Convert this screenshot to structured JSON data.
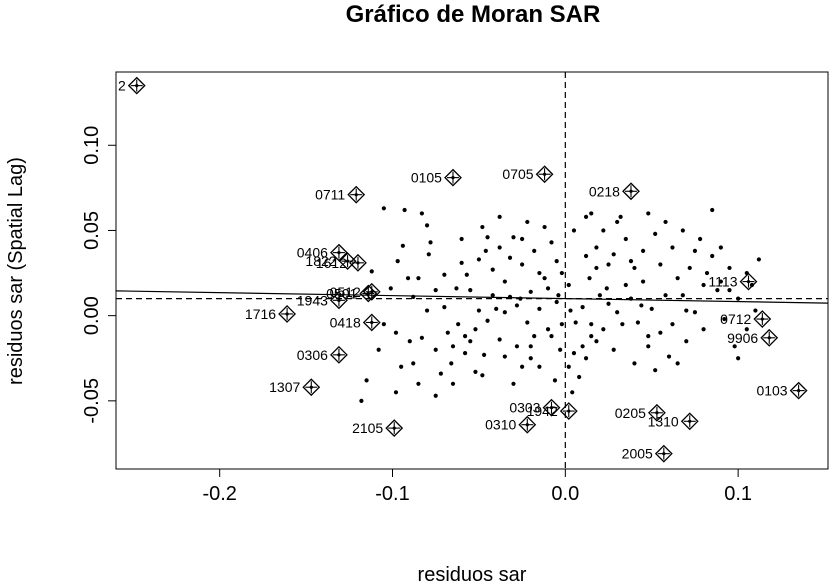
{
  "chart_data": {
    "type": "scatter",
    "title": "Gráfico de Moran SAR",
    "xlabel": "residuos sar",
    "ylabel": "residuos sar (Spatial Lag)",
    "xlim": [
      -0.26,
      0.152
    ],
    "ylim": [
      -0.09,
      0.143
    ],
    "x_ticks": [
      {
        "value": -0.2,
        "label": "-0.2"
      },
      {
        "value": -0.1,
        "label": "-0.1"
      },
      {
        "value": 0.0,
        "label": "0.0"
      },
      {
        "value": 0.1,
        "label": "0.1"
      }
    ],
    "y_ticks": [
      {
        "value": -0.05,
        "label": "-0.05"
      },
      {
        "value": 0.0,
        "label": "0.00"
      },
      {
        "value": 0.05,
        "label": "0.05"
      },
      {
        "value": 0.1,
        "label": "0.10"
      }
    ],
    "grid": false,
    "mean_lines": {
      "x": 0.0,
      "y": 0.01
    },
    "regression_line": {
      "intercept": 0.01,
      "slope": -0.0175
    },
    "influential_points": [
      {
        "label": "2",
        "x": -0.248,
        "y": 0.135
      },
      {
        "label": "0105",
        "x": -0.065,
        "y": 0.081
      },
      {
        "label": "0705",
        "x": -0.012,
        "y": 0.083
      },
      {
        "label": "0218",
        "x": 0.038,
        "y": 0.073
      },
      {
        "label": "0711",
        "x": -0.121,
        "y": 0.071
      },
      {
        "label": "0406",
        "x": -0.131,
        "y": 0.037
      },
      {
        "label": "1822",
        "x": -0.126,
        "y": 0.032
      },
      {
        "label": "1612",
        "x": -0.12,
        "y": 0.031
      },
      {
        "label": "1113",
        "x": 0.106,
        "y": 0.02
      },
      {
        "label": "0501",
        "x": -0.114,
        "y": 0.013
      },
      {
        "label": "0512",
        "x": -0.112,
        "y": 0.014
      },
      {
        "label": "1943",
        "x": -0.131,
        "y": 0.009
      },
      {
        "label": "1716",
        "x": -0.161,
        "y": 0.001
      },
      {
        "label": "0418",
        "x": -0.112,
        "y": -0.004
      },
      {
        "label": "0712",
        "x": 0.114,
        "y": -0.002
      },
      {
        "label": "9906",
        "x": 0.118,
        "y": -0.013
      },
      {
        "label": "0306",
        "x": -0.131,
        "y": -0.023
      },
      {
        "label": "1307",
        "x": -0.147,
        "y": -0.042
      },
      {
        "label": "0103",
        "x": 0.135,
        "y": -0.044
      },
      {
        "label": "0303",
        "x": -0.008,
        "y": -0.054
      },
      {
        "label": "1942",
        "x": 0.002,
        "y": -0.056
      },
      {
        "label": "0205",
        "x": 0.053,
        "y": -0.057
      },
      {
        "label": "0310",
        "x": -0.022,
        "y": -0.064
      },
      {
        "label": "1310",
        "x": 0.072,
        "y": -0.062
      },
      {
        "label": "2105",
        "x": -0.099,
        "y": -0.066
      },
      {
        "label": "2005",
        "x": 0.057,
        "y": -0.081
      }
    ],
    "points": [
      [
        -0.105,
        0.063
      ],
      [
        -0.093,
        0.062
      ],
      [
        -0.083,
        0.06
      ],
      [
        -0.08,
        0.053
      ],
      [
        -0.078,
        0.043
      ],
      [
        -0.079,
        0.036
      ],
      [
        -0.094,
        0.041
      ],
      [
        -0.097,
        0.032
      ],
      [
        -0.091,
        0.022
      ],
      [
        -0.101,
        0.016
      ],
      [
        -0.088,
        0.011
      ],
      [
        -0.075,
        0.015
      ],
      [
        -0.063,
        0.016
      ],
      [
        -0.07,
        0.005
      ],
      [
        -0.055,
        0.015
      ],
      [
        -0.057,
        0.024
      ],
      [
        -0.06,
        0.031
      ],
      [
        -0.05,
        0.033
      ],
      [
        -0.042,
        0.027
      ],
      [
        -0.045,
        0.046
      ],
      [
        -0.048,
        0.052
      ],
      [
        -0.038,
        0.04
      ],
      [
        -0.035,
        0.02
      ],
      [
        -0.032,
        0.011
      ],
      [
        -0.04,
        0.004
      ],
      [
        -0.045,
        -0.003
      ],
      [
        -0.052,
        -0.008
      ],
      [
        -0.058,
        -0.012
      ],
      [
        -0.065,
        -0.018
      ],
      [
        -0.075,
        -0.02
      ],
      [
        -0.083,
        -0.013
      ],
      [
        -0.09,
        -0.015
      ],
      [
        -0.095,
        -0.03
      ],
      [
        -0.098,
        -0.045
      ],
      [
        -0.085,
        -0.04
      ],
      [
        -0.075,
        -0.047
      ],
      [
        -0.065,
        -0.04
      ],
      [
        -0.052,
        -0.033
      ],
      [
        -0.047,
        -0.023
      ],
      [
        -0.038,
        -0.014
      ],
      [
        -0.035,
        -0.024
      ],
      [
        -0.028,
        -0.018
      ],
      [
        -0.025,
        -0.03
      ],
      [
        -0.03,
        -0.04
      ],
      [
        -0.02,
        -0.025
      ],
      [
        -0.018,
        -0.012
      ],
      [
        -0.022,
        -0.004
      ],
      [
        -0.015,
        0.004
      ],
      [
        -0.02,
        0.014
      ],
      [
        -0.012,
        0.022
      ],
      [
        -0.025,
        0.03
      ],
      [
        -0.018,
        0.038
      ],
      [
        -0.03,
        0.046
      ],
      [
        -0.022,
        0.055
      ],
      [
        -0.012,
        0.052
      ],
      [
        -0.008,
        0.043
      ],
      [
        -0.005,
        0.032
      ],
      [
        -0.002,
        0.025
      ],
      [
        0.002,
        0.018
      ],
      [
        -0.005,
        0.008
      ],
      [
        0.003,
        0.003
      ],
      [
        -0.002,
        -0.005
      ],
      [
        -0.008,
        -0.012
      ],
      [
        -0.003,
        -0.02
      ],
      [
        0.002,
        -0.03
      ],
      [
        -0.006,
        -0.038
      ],
      [
        0.004,
        -0.045
      ],
      [
        0.008,
        -0.036
      ],
      [
        0.012,
        -0.025
      ],
      [
        0.018,
        -0.015
      ],
      [
        0.015,
        -0.005
      ],
      [
        0.01,
        0.005
      ],
      [
        0.02,
        0.012
      ],
      [
        0.014,
        0.022
      ],
      [
        0.025,
        0.03
      ],
      [
        0.018,
        0.04
      ],
      [
        0.022,
        0.05
      ],
      [
        0.012,
        0.058
      ],
      [
        0.03,
        0.055
      ],
      [
        0.035,
        0.045
      ],
      [
        0.028,
        0.036
      ],
      [
        0.04,
        0.028
      ],
      [
        0.045,
        0.02
      ],
      [
        0.038,
        0.01
      ],
      [
        0.05,
        0.004
      ],
      [
        0.042,
        -0.004
      ],
      [
        0.055,
        -0.01
      ],
      [
        0.048,
        -0.018
      ],
      [
        0.06,
        -0.024
      ],
      [
        0.052,
        -0.032
      ],
      [
        0.065,
        -0.028
      ],
      [
        0.07,
        -0.015
      ],
      [
        0.062,
        -0.005
      ],
      [
        0.075,
        0.002
      ],
      [
        0.068,
        0.012
      ],
      [
        0.08,
        0.018
      ],
      [
        0.072,
        0.028
      ],
      [
        0.085,
        0.035
      ],
      [
        0.078,
        0.045
      ],
      [
        0.09,
        0.04
      ],
      [
        0.095,
        0.028
      ],
      [
        0.088,
        0.015
      ],
      [
        0.1,
        0.01
      ],
      [
        0.092,
        -0.002
      ],
      [
        0.105,
        -0.008
      ],
      [
        0.098,
        -0.018
      ],
      [
        0.11,
        0.003
      ],
      [
        0.112,
        0.033
      ],
      [
        0.085,
        0.062
      ],
      [
        0.058,
        0.055
      ],
      [
        0.048,
        0.06
      ],
      [
        0.032,
        0.058
      ],
      [
        0.068,
        0.05
      ],
      [
        0.075,
        0.038
      ],
      [
        0.105,
        0.025
      ],
      [
        0.015,
        0.06
      ],
      [
        0.005,
        0.05
      ],
      [
        -0.05,
        0.003
      ],
      [
        -0.062,
        -0.005
      ],
      [
        -0.068,
        -0.01
      ],
      [
        -0.08,
        0.003
      ],
      [
        -0.085,
        0.022
      ],
      [
        -0.098,
        -0.01
      ],
      [
        -0.06,
        0.045
      ],
      [
        -0.07,
        0.024
      ],
      [
        -0.066,
        -0.028
      ],
      [
        -0.055,
        -0.015
      ],
      [
        -0.042,
        0.012
      ],
      [
        -0.028,
        0.006
      ],
      [
        -0.032,
        0.034
      ],
      [
        -0.01,
        0.016
      ],
      [
        0.025,
        0.007
      ],
      [
        0.033,
        -0.005
      ],
      [
        0.028,
        -0.02
      ],
      [
        0.04,
        -0.028
      ],
      [
        0.055,
        0.03
      ],
      [
        0.065,
        0.022
      ],
      [
        0.058,
        0.012
      ],
      [
        0.022,
        -0.008
      ],
      [
        0.01,
        -0.018
      ],
      [
        -0.01,
        -0.008
      ],
      [
        -0.015,
        -0.03
      ],
      [
        0.035,
        0.018
      ],
      [
        0.045,
        0.038
      ],
      [
        0.08,
        -0.008
      ],
      [
        0.095,
        0.015
      ],
      [
        0.1,
        -0.025
      ],
      [
        0.108,
        0.018
      ],
      [
        -0.112,
        0.026
      ],
      [
        -0.115,
        -0.038
      ],
      [
        -0.108,
        -0.02
      ],
      [
        -0.118,
        -0.05
      ],
      [
        -0.105,
        -0.005
      ],
      [
        -0.046,
        0.038
      ],
      [
        -0.038,
        0.058
      ],
      [
        0.062,
        0.04
      ],
      [
        0.07,
        0.003
      ],
      [
        0.082,
        0.025
      ],
      [
        0.015,
        -0.012
      ],
      [
        0.018,
        0.028
      ],
      [
        -0.025,
        0.045
      ],
      [
        -0.035,
        0.002
      ],
      [
        0.005,
        -0.022
      ],
      [
        -0.015,
        0.025
      ],
      [
        0.03,
        0.002
      ],
      [
        0.048,
        -0.012
      ],
      [
        0.038,
        0.032
      ],
      [
        0.052,
        0.048
      ],
      [
        0.09,
        0.02
      ],
      [
        -0.058,
        -0.022
      ],
      [
        -0.048,
        -0.035
      ],
      [
        -0.088,
        -0.028
      ],
      [
        -0.072,
        -0.034
      ],
      [
        0.012,
        0.035
      ],
      [
        0.006,
        -0.004
      ],
      [
        -0.004,
        0.012
      ],
      [
        0.024,
        0.016
      ],
      [
        0.044,
        0.006
      ],
      [
        -0.02,
        -0.018
      ],
      [
        -0.026,
        0.01
      ]
    ]
  }
}
